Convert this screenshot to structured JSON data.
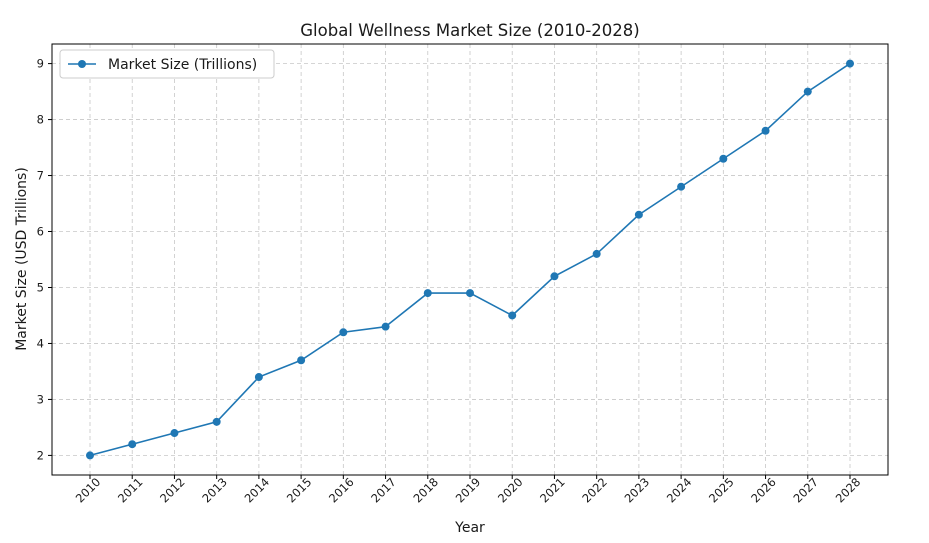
{
  "chart_data": {
    "type": "line",
    "title": "Global Wellness Market Size (2010-2028)",
    "xlabel": "Year",
    "ylabel": "Market Size (USD Trillions)",
    "categories": [
      "2010",
      "2011",
      "2012",
      "2013",
      "2014",
      "2015",
      "2016",
      "2017",
      "2018",
      "2019",
      "2020",
      "2021",
      "2022",
      "2023",
      "2024",
      "2025",
      "2026",
      "2027",
      "2028"
    ],
    "series": [
      {
        "name": "Market Size (Trillions)",
        "values": [
          2.0,
          2.2,
          2.4,
          2.6,
          3.4,
          3.7,
          4.2,
          4.3,
          4.9,
          4.9,
          4.5,
          5.2,
          5.6,
          6.3,
          6.8,
          7.3,
          7.8,
          8.5,
          9.0
        ]
      }
    ],
    "ylim": [
      1.65,
      9.35
    ],
    "yticks": [
      2,
      3,
      4,
      5,
      6,
      7,
      8,
      9
    ],
    "grid": true,
    "legend_position": "top-left",
    "color": "#1f77b4",
    "marker": "circle"
  }
}
